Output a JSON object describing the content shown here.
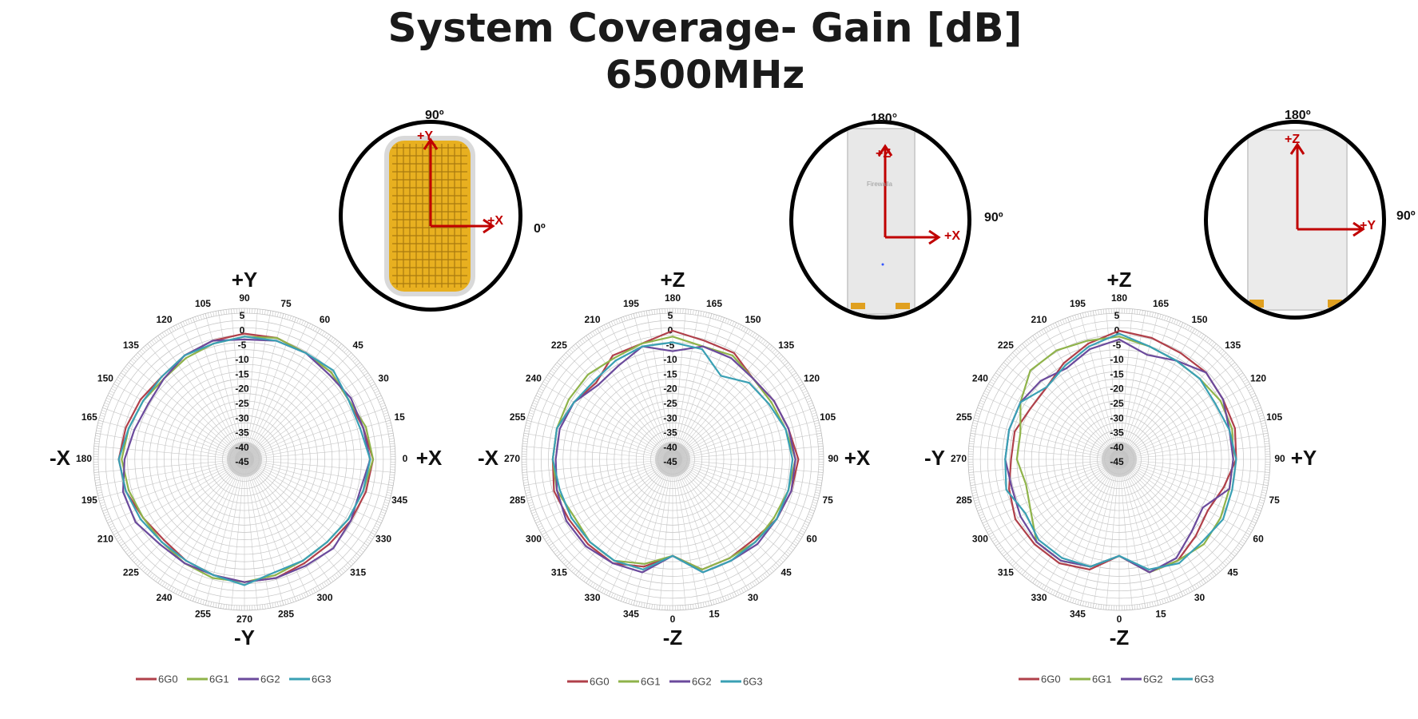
{
  "title": {
    "line1": "System Coverage- Gain [dB]",
    "line2": "6500MHz"
  },
  "colors": {
    "6G0": "#b0404a",
    "6G1": "#8fb34a",
    "6G2": "#6b4a9c",
    "6G3": "#3aa0b4"
  },
  "insets": [
    {
      "top_label": "90º",
      "right_label": "0º",
      "up_axis": "+Y",
      "right_axis": "+X",
      "device": "yellow-grille"
    },
    {
      "top_label": "180°",
      "right_label": "90º",
      "up_axis": "+Z",
      "right_axis": "+X",
      "device": "white-tower",
      "brand": "Firewalla"
    },
    {
      "top_label": "180º",
      "right_label": "90º",
      "up_axis": "+Z",
      "right_axis": "+Y",
      "device": "white-tower"
    }
  ],
  "chart_data": [
    {
      "type": "polar-line",
      "top_axis": "+Y",
      "bottom_axis": "-Y",
      "left_axis": "-X",
      "right_axis": "+X",
      "angle_labels": [
        "0",
        "15",
        "30",
        "45",
        "60",
        "75",
        "90",
        "105",
        "120",
        "135",
        "150",
        "165",
        "180",
        "195",
        "210",
        "225",
        "240",
        "255",
        "270",
        "285",
        "300",
        "315",
        "330",
        "345"
      ],
      "angle_orientation": "counterclockwise-from-right",
      "r_ticks": [
        "5",
        "0",
        "-5",
        "-10",
        "-15",
        "-20",
        "-25",
        "-30",
        "-35",
        "-40",
        "-45"
      ],
      "rlim": [
        -45,
        5
      ],
      "angles_deg": [
        0,
        15,
        30,
        45,
        60,
        75,
        90,
        105,
        120,
        135,
        150,
        165,
        180,
        195,
        210,
        225,
        240,
        255,
        270,
        285,
        300,
        315,
        330,
        345
      ],
      "series": [
        {
          "name": "6G0",
          "values": [
            -1,
            -3,
            -4,
            -3,
            -3,
            -2,
            -2,
            -3,
            -4,
            -5,
            -4,
            -3,
            -2,
            -3,
            -5,
            -6,
            -5,
            -4,
            -3,
            -3,
            -4,
            -4,
            -3,
            -2
          ]
        },
        {
          "name": "6G1",
          "values": [
            -1,
            -2,
            -4,
            -3,
            -3,
            -2,
            -3,
            -4,
            -5,
            -6,
            -5,
            -4,
            -3,
            -4,
            -5,
            -5,
            -4,
            -3,
            -3,
            -4,
            -5,
            -5,
            -4,
            -3
          ]
        },
        {
          "name": "6G2",
          "values": [
            -2,
            -3,
            -3,
            -4,
            -3,
            -3,
            -4,
            -3,
            -4,
            -6,
            -7,
            -6,
            -4,
            -2,
            -2,
            -4,
            -4,
            -4,
            -3,
            -3,
            -3,
            -2,
            -3,
            -4
          ]
        },
        {
          "name": "6G3",
          "values": [
            -2,
            -4,
            -4,
            -2,
            -3,
            -3,
            -3,
            -4,
            -4,
            -5,
            -5,
            -4,
            -2,
            -3,
            -4,
            -5,
            -5,
            -4,
            -2,
            -5,
            -5,
            -5,
            -4,
            -3
          ]
        }
      ]
    },
    {
      "type": "polar-line",
      "top_axis": "+Z",
      "bottom_axis": "-Z",
      "left_axis": "-X",
      "right_axis": "+X",
      "angle_labels": [
        "0",
        "15",
        "30",
        "45",
        "60",
        "75",
        "90",
        "105",
        "120",
        "135",
        "150",
        "165",
        "180",
        "195",
        "210",
        "225",
        "240",
        "255",
        "270",
        "285",
        "300",
        "315",
        "330",
        "345"
      ],
      "angle_orientation": "counterclockwise-from-bottom",
      "r_ticks": [
        "5",
        "0",
        "-5",
        "-10",
        "-15",
        "-20",
        "-25",
        "-30",
        "-35",
        "-40",
        "-45"
      ],
      "rlim": [
        -45,
        5
      ],
      "angles_deg": [
        0,
        15,
        30,
        45,
        60,
        75,
        90,
        105,
        120,
        135,
        150,
        165,
        180,
        195,
        210,
        225,
        240,
        255,
        270,
        285,
        300,
        315,
        330,
        345
      ],
      "series": [
        {
          "name": "6G0",
          "values": [
            -12,
            -6,
            -6,
            -6,
            -4,
            -3,
            -2,
            -4,
            -5,
            -6,
            -3,
            -3,
            -1,
            -4,
            -4,
            -8,
            -6,
            -4,
            -4,
            -3,
            -4,
            -4,
            -4,
            -7
          ]
        },
        {
          "name": "6G1",
          "values": [
            -12,
            -6,
            -6,
            -5,
            -5,
            -4,
            -3,
            -5,
            -6,
            -6,
            -4,
            -5,
            -3,
            -4,
            -5,
            -4,
            -4,
            -4,
            -4,
            -4,
            -6,
            -5,
            -5,
            -8
          ]
        },
        {
          "name": "6G2",
          "values": [
            -12,
            -5,
            -5,
            -4,
            -4,
            -3,
            -3,
            -4,
            -5,
            -6,
            -5,
            -5,
            -8,
            -5,
            -8,
            -9,
            -6,
            -5,
            -5,
            -4,
            -3,
            -3,
            -4,
            -5
          ]
        },
        {
          "name": "6G3",
          "values": [
            -12,
            -5,
            -5,
            -5,
            -4,
            -4,
            -4,
            -5,
            -7,
            -8,
            -12,
            -6,
            -5,
            -5,
            -6,
            -7,
            -6,
            -4,
            -4,
            -5,
            -5,
            -5,
            -5,
            -6
          ]
        }
      ]
    },
    {
      "type": "polar-line",
      "top_axis": "+Z",
      "bottom_axis": "-Z",
      "left_axis": "-Y",
      "right_axis": "+Y",
      "angle_labels": [
        "0",
        "15",
        "30",
        "45",
        "60",
        "75",
        "90",
        "105",
        "120",
        "135",
        "150",
        "165",
        "180",
        "195",
        "210",
        "225",
        "240",
        "255",
        "270",
        "285",
        "300",
        "315",
        "330",
        "345"
      ],
      "angle_orientation": "counterclockwise-from-bottom",
      "r_ticks": [
        "5",
        "0",
        "-5",
        "-10",
        "-15",
        "-20",
        "-25",
        "-30",
        "-35",
        "-40",
        "-45"
      ],
      "rlim": [
        -45,
        5
      ],
      "angles_deg": [
        0,
        15,
        30,
        45,
        60,
        75,
        90,
        105,
        120,
        135,
        150,
        165,
        180,
        195,
        210,
        225,
        240,
        255,
        270,
        285,
        300,
        315,
        330,
        345
      ],
      "series": [
        {
          "name": "6G0",
          "values": [
            -12,
            -5,
            -5,
            -8,
            -10,
            -8,
            -5,
            -4,
            -4,
            -3,
            -3,
            -2,
            -1,
            -4,
            -7,
            -10,
            -10,
            -8,
            -8,
            -6,
            -4,
            -4,
            -4,
            -6
          ]
        },
        {
          "name": "6G1",
          "values": [
            -12,
            -5,
            -5,
            -4,
            -5,
            -6,
            -6,
            -5,
            -5,
            -6,
            -6,
            -5,
            -3,
            -3,
            -2,
            -2,
            -6,
            -10,
            -10,
            -12,
            -10,
            -5,
            -5,
            -7
          ]
        },
        {
          "name": "6G2",
          "values": [
            -12,
            -5,
            -6,
            -10,
            -12,
            -6,
            -6,
            -6,
            -4,
            -3,
            -6,
            -8,
            -4,
            -6,
            -9,
            -7,
            -6,
            -6,
            -6,
            -7,
            -6,
            -5,
            -5,
            -7
          ]
        },
        {
          "name": "6G3",
          "values": [
            -12,
            -6,
            -4,
            -5,
            -4,
            -5,
            -5,
            -6,
            -7,
            -6,
            -6,
            -5,
            -2,
            -5,
            -8,
            -10,
            -6,
            -6,
            -6,
            -5,
            -8,
            -6,
            -6,
            -7
          ]
        }
      ]
    }
  ]
}
